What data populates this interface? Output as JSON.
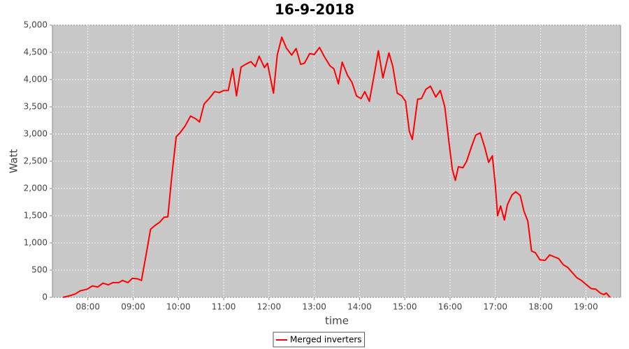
{
  "chart_data": {
    "type": "line",
    "title": "16-9-2018",
    "x_label": "time",
    "y_label": "Watt",
    "x": [
      "07:27",
      "07:36",
      "07:43",
      "07:50",
      "07:59",
      "08:06",
      "08:13",
      "08:20",
      "08:27",
      "08:33",
      "08:41",
      "08:46",
      "08:53",
      "08:59",
      "09:06",
      "09:11",
      "09:18",
      "09:23",
      "09:29",
      "09:35",
      "09:41",
      "09:46",
      "09:51",
      "09:57",
      "10:02",
      "10:09",
      "10:16",
      "10:23",
      "10:28",
      "10:34",
      "10:40",
      "10:48",
      "10:54",
      "11:00",
      "11:06",
      "11:12",
      "11:17",
      "11:23",
      "11:29",
      "11:36",
      "11:42",
      "11:47",
      "11:54",
      "11:58",
      "12:06",
      "12:11",
      "12:17",
      "12:23",
      "12:30",
      "12:36",
      "12:42",
      "12:47",
      "12:54",
      "13:00",
      "13:07",
      "13:13",
      "13:21",
      "13:26",
      "13:32",
      "13:37",
      "13:44",
      "13:50",
      "13:56",
      "14:02",
      "14:07",
      "14:13",
      "14:19",
      "14:25",
      "14:31",
      "14:39",
      "14:44",
      "14:50",
      "14:56",
      "15:01",
      "15:06",
      "15:10",
      "15:17",
      "15:22",
      "15:28",
      "15:34",
      "15:41",
      "15:47",
      "15:53",
      "15:59",
      "16:03",
      "16:07",
      "16:11",
      "16:17",
      "16:22",
      "16:28",
      "16:34",
      "16:40",
      "16:46",
      "16:51",
      "16:56",
      "17:00",
      "17:03",
      "17:07",
      "17:12",
      "17:16",
      "17:22",
      "17:27",
      "17:33",
      "17:38",
      "17:43",
      "17:48",
      "17:53",
      "17:59",
      "18:06",
      "18:12",
      "18:17",
      "18:24",
      "18:30",
      "18:36",
      "18:41",
      "18:48",
      "18:54",
      "19:00",
      "19:07",
      "19:13",
      "19:19",
      "19:24",
      "19:27",
      "19:32"
    ],
    "series": [
      {
        "name": "Merged inverters",
        "color": "#ff0000",
        "values": [
          0,
          30,
          60,
          120,
          150,
          210,
          190,
          260,
          230,
          270,
          270,
          310,
          270,
          350,
          340,
          310,
          850,
          1250,
          1320,
          1380,
          1470,
          1480,
          2200,
          2950,
          3020,
          3150,
          3330,
          3280,
          3220,
          3550,
          3640,
          3780,
          3760,
          3800,
          3800,
          4200,
          3700,
          4230,
          4280,
          4330,
          4240,
          4430,
          4220,
          4300,
          3750,
          4450,
          4780,
          4580,
          4450,
          4570,
          4280,
          4300,
          4480,
          4460,
          4590,
          4430,
          4250,
          4200,
          3920,
          4320,
          4080,
          3950,
          3700,
          3650,
          3780,
          3600,
          4050,
          4530,
          4030,
          4490,
          4250,
          3750,
          3700,
          3600,
          3050,
          2900,
          3640,
          3650,
          3820,
          3880,
          3680,
          3800,
          3500,
          2800,
          2350,
          2150,
          2400,
          2380,
          2500,
          2750,
          2980,
          3020,
          2750,
          2480,
          2600,
          2050,
          1500,
          1680,
          1420,
          1700,
          1880,
          1940,
          1870,
          1580,
          1400,
          850,
          820,
          690,
          680,
          780,
          750,
          710,
          600,
          550,
          470,
          360,
          310,
          240,
          160,
          150,
          80,
          50,
          80,
          0
        ]
      }
    ],
    "xlim": [
      "07:13",
      "19:46"
    ],
    "xticks": [
      "08:00",
      "09:00",
      "10:00",
      "11:00",
      "12:00",
      "13:00",
      "14:00",
      "15:00",
      "16:00",
      "17:00",
      "18:00",
      "19:00"
    ],
    "ylim": [
      0,
      5000
    ],
    "yticks": [
      0,
      {
        "value": 500,
        "label": "500"
      },
      {
        "value": 1000,
        "label": "1,000"
      },
      {
        "value": 1500,
        "label": "1,500"
      },
      {
        "value": 2000,
        "label": "2,000"
      },
      {
        "value": 2500,
        "label": "2,500"
      },
      {
        "value": 3000,
        "label": "3,000"
      },
      {
        "value": 3500,
        "label": "3,500"
      },
      {
        "value": 4000,
        "label": "4,000"
      },
      {
        "value": 4500,
        "label": "4,500"
      },
      {
        "value": 5000,
        "label": "5,000"
      }
    ],
    "grid": true,
    "legend": "bottom"
  }
}
